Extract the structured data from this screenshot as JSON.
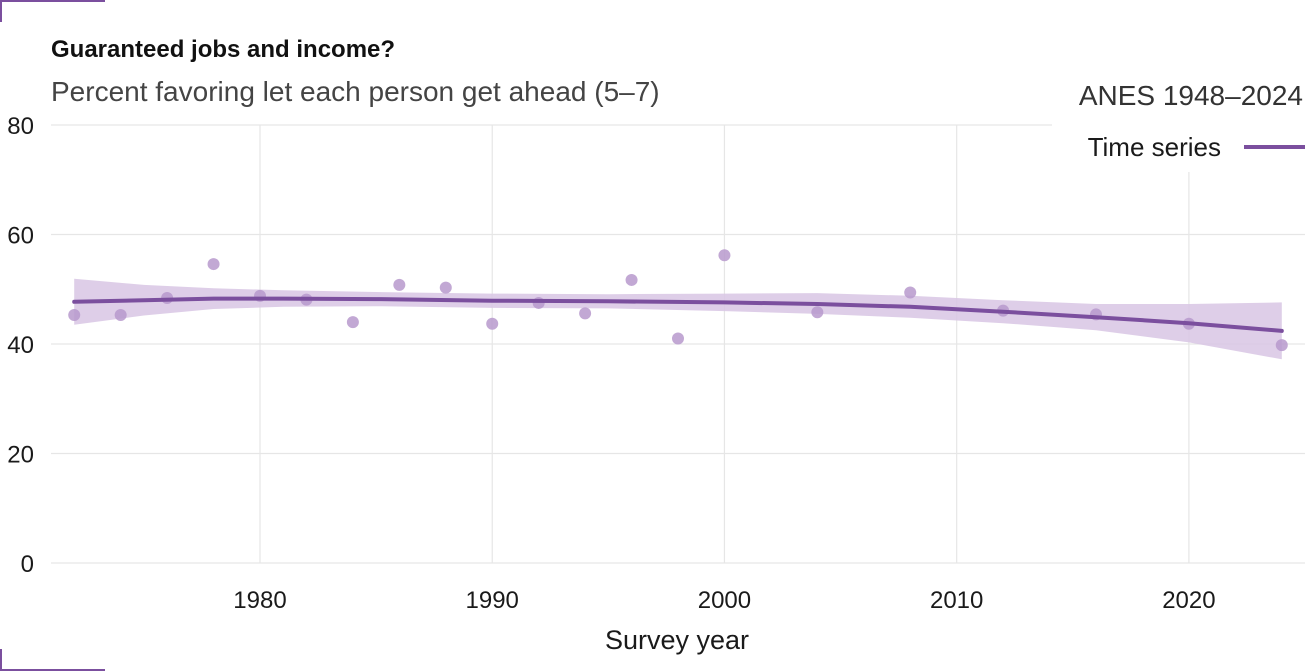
{
  "header": {
    "title": "Guaranteed jobs and income?",
    "subtitle": "Percent favoring let each person get ahead (5–7)",
    "source": "ANES 1948–2024"
  },
  "colors": {
    "accent": "#7b4f9e",
    "band": "#d8c6e4",
    "point": "#b799cc",
    "grid": "#e6e6e6"
  },
  "chart_data": {
    "type": "scatter",
    "title": "Guaranteed jobs and income?",
    "subtitle": "Percent favoring let each person get ahead (5–7)",
    "xlabel": "Survey year",
    "ylabel": "",
    "xlim": [
      1971,
      2025
    ],
    "ylim": [
      0,
      80
    ],
    "x_ticks": [
      1980,
      1990,
      2000,
      2010,
      2020
    ],
    "y_ticks": [
      0,
      20,
      40,
      60,
      80
    ],
    "grid": true,
    "legend": {
      "placement": "top-right",
      "entries": [
        "Time series"
      ]
    },
    "points": [
      {
        "x": 1972,
        "y": 45.3
      },
      {
        "x": 1974,
        "y": 45.3
      },
      {
        "x": 1976,
        "y": 48.4
      },
      {
        "x": 1978,
        "y": 54.6
      },
      {
        "x": 1980,
        "y": 48.8
      },
      {
        "x": 1982,
        "y": 48.1
      },
      {
        "x": 1984,
        "y": 44.0
      },
      {
        "x": 1986,
        "y": 50.8
      },
      {
        "x": 1988,
        "y": 50.3
      },
      {
        "x": 1990,
        "y": 43.7
      },
      {
        "x": 1992,
        "y": 47.5
      },
      {
        "x": 1994,
        "y": 45.6
      },
      {
        "x": 1996,
        "y": 51.7
      },
      {
        "x": 1998,
        "y": 41.0
      },
      {
        "x": 2000,
        "y": 56.2
      },
      {
        "x": 2004,
        "y": 45.8
      },
      {
        "x": 2008,
        "y": 49.4
      },
      {
        "x": 2012,
        "y": 46.1
      },
      {
        "x": 2016,
        "y": 45.4
      },
      {
        "x": 2020,
        "y": 43.7
      },
      {
        "x": 2024,
        "y": 39.8
      }
    ],
    "trend": {
      "name": "Time series",
      "x": [
        1972,
        1975,
        1978,
        1981,
        1985,
        1990,
        1995,
        2000,
        2004,
        2008,
        2012,
        2016,
        2020,
        2024
      ],
      "y": [
        47.7,
        48.0,
        48.3,
        48.3,
        48.2,
        47.9,
        47.8,
        47.6,
        47.3,
        46.8,
        45.9,
        44.9,
        43.8,
        42.4
      ],
      "lower": [
        43.5,
        45.2,
        46.4,
        46.8,
        46.9,
        46.6,
        46.5,
        46.0,
        45.5,
        44.8,
        43.8,
        42.5,
        40.3,
        37.2
      ],
      "upper": [
        51.9,
        50.8,
        50.2,
        49.8,
        49.5,
        49.2,
        49.1,
        49.2,
        49.3,
        48.8,
        48.0,
        47.3,
        47.3,
        47.6
      ]
    }
  }
}
